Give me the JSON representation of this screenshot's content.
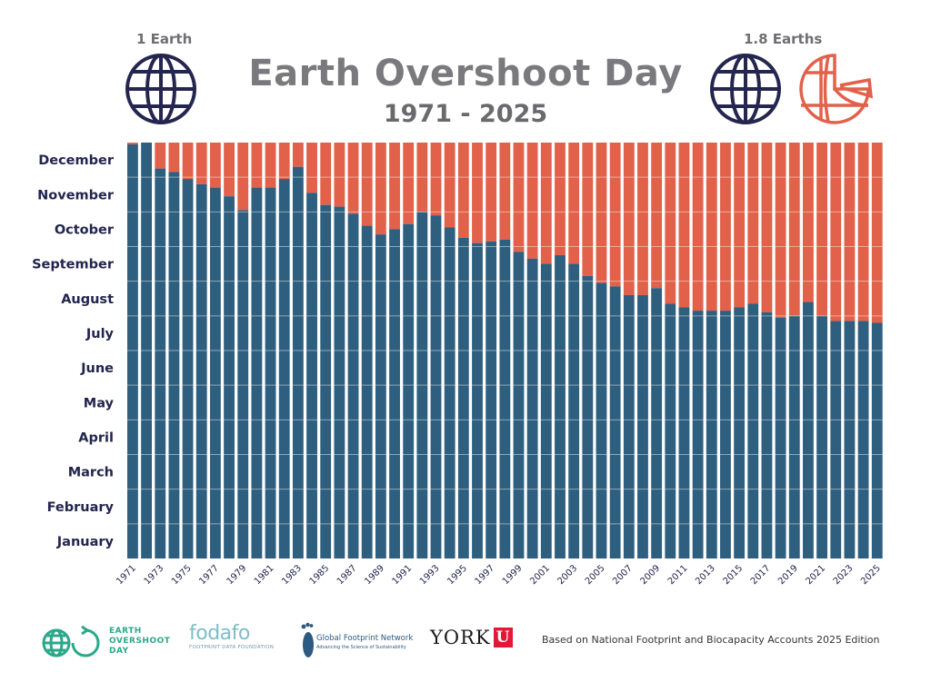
{
  "header": {
    "title": "Earth Overshoot Day",
    "subtitle": "1971 - 2025",
    "left_label": "1 Earth",
    "right_label": "1.8 Earths"
  },
  "colors": {
    "bar": "#2f5f7f",
    "overshoot": "#e2614a",
    "globe": "#25264f",
    "globe_partial": "#e2614a",
    "text": "#22254d"
  },
  "icons": {
    "left": "globe-icon",
    "right": [
      "globe-icon",
      "partial-globe-icon"
    ]
  },
  "chart_data": {
    "type": "bar",
    "title": "Earth Overshoot Day",
    "subtitle": "1971 - 2025",
    "x_tick_labels": [
      "1971",
      "1973",
      "1975",
      "1977",
      "1979",
      "1981",
      "1983",
      "1985",
      "1987",
      "1989",
      "1991",
      "1993",
      "1995",
      "1997",
      "1999",
      "2001",
      "2003",
      "2005",
      "2007",
      "2009",
      "2011",
      "2013",
      "2015",
      "2017",
      "2019",
      "2021",
      "2023",
      "2025"
    ],
    "y_tick_labels": [
      "January",
      "February",
      "March",
      "April",
      "May",
      "June",
      "July",
      "August",
      "September",
      "October",
      "November",
      "December"
    ],
    "ylim": [
      0,
      12
    ],
    "y_unit": "months into the year",
    "categories": [
      1971,
      1972,
      1973,
      1974,
      1975,
      1976,
      1977,
      1978,
      1979,
      1980,
      1981,
      1982,
      1983,
      1984,
      1985,
      1986,
      1987,
      1988,
      1989,
      1990,
      1991,
      1992,
      1993,
      1994,
      1995,
      1996,
      1997,
      1998,
      1999,
      2000,
      2001,
      2002,
      2003,
      2004,
      2005,
      2006,
      2007,
      2008,
      2009,
      2010,
      2011,
      2012,
      2013,
      2014,
      2015,
      2016,
      2017,
      2018,
      2019,
      2020,
      2021,
      2022,
      2023,
      2024,
      2025
    ],
    "values": [
      11.95,
      12.0,
      11.25,
      11.15,
      10.95,
      10.8,
      10.7,
      10.45,
      10.05,
      10.7,
      10.7,
      10.95,
      11.3,
      10.55,
      10.2,
      10.15,
      9.95,
      9.6,
      9.35,
      9.5,
      9.65,
      10.0,
      9.9,
      9.55,
      9.25,
      9.1,
      9.15,
      9.2,
      8.85,
      8.65,
      8.5,
      8.75,
      8.5,
      8.15,
      7.95,
      7.85,
      7.6,
      7.6,
      7.8,
      7.35,
      7.25,
      7.15,
      7.15,
      7.15,
      7.25,
      7.35,
      7.1,
      6.95,
      7.0,
      7.4,
      7.0,
      6.85,
      6.85,
      6.85,
      6.8
    ],
    "series": [
      {
        "name": "",
        "role": "earth-overshoot-date",
        "color": "#2f5f7f"
      },
      {
        "name": "",
        "role": "remainder-of-year",
        "color": "#e2614a"
      }
    ],
    "grid": true,
    "legend": "none"
  },
  "footer": {
    "eod_logo_lines": [
      "EARTH",
      "OVERSHOOT",
      "DAY"
    ],
    "fodafo_name": "fodafo",
    "fodafo_tagline": "FOOTPRINT DATA FOUNDATION",
    "gfn_name": "Global Footprint Network",
    "gfn_tagline": "Advancing the Science of Sustainability",
    "york_word": "YORK",
    "york_u": "U",
    "source": "Based on National Footprint and Biocapacity Accounts 2025 Edition"
  }
}
